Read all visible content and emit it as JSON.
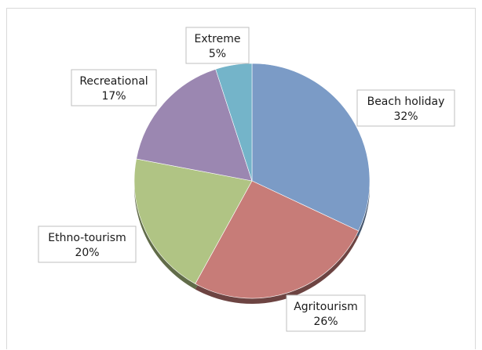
{
  "chart_data": {
    "type": "pie",
    "title": "",
    "slices": [
      {
        "label": "Beach holiday",
        "value": 32,
        "value_label": "32%",
        "color": "#7b9bc6"
      },
      {
        "label": "Agritourism",
        "value": 26,
        "value_label": "26%",
        "color": "#c77c78"
      },
      {
        "label": "Ethno-tourism",
        "value": 20,
        "value_label": "20%",
        "color": "#b0c484"
      },
      {
        "label": "Recreational",
        "value": 17,
        "value_label": "17%",
        "color": "#9b87b1"
      },
      {
        "label": "Extreme",
        "value": 5,
        "value_label": "5%",
        "color": "#74b4c9"
      }
    ],
    "start_angle_deg": 0,
    "direction": "clockwise",
    "style": "3d-shadow",
    "legend": "none",
    "data_labels": "callout-boxes"
  }
}
